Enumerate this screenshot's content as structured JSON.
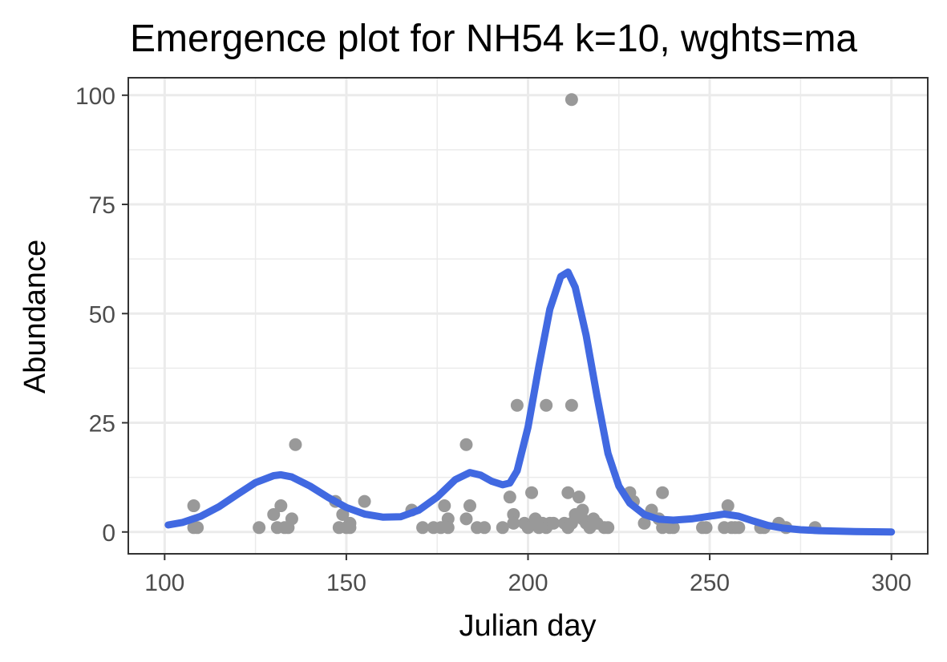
{
  "chart_data": {
    "type": "scatter",
    "title": "Emergence plot for NH54 k=10, wghts=ma",
    "xlabel": "Julian day",
    "ylabel": "Abundance",
    "xlim": [
      90,
      310
    ],
    "ylim": [
      -5,
      104
    ],
    "xticks": [
      100,
      150,
      200,
      250,
      300
    ],
    "yticks": [
      0,
      25,
      50,
      75,
      100
    ],
    "grid": true,
    "colors": {
      "points": "#999999",
      "curve": "#4169E1",
      "grid": "#ebebeb",
      "panel_border": "#333333"
    },
    "series": [
      {
        "type": "scatter",
        "points": [
          [
            108,
            6
          ],
          [
            108,
            1
          ],
          [
            109,
            1
          ],
          [
            126,
            1
          ],
          [
            130,
            4
          ],
          [
            131,
            1
          ],
          [
            132,
            6
          ],
          [
            133,
            1
          ],
          [
            134,
            1
          ],
          [
            135,
            3
          ],
          [
            136,
            20
          ],
          [
            147,
            7
          ],
          [
            148,
            1
          ],
          [
            149,
            4
          ],
          [
            150,
            1
          ],
          [
            151,
            2
          ],
          [
            151,
            1
          ],
          [
            155,
            7
          ],
          [
            168,
            5
          ],
          [
            171,
            1
          ],
          [
            174,
            1
          ],
          [
            176,
            1
          ],
          [
            177,
            6
          ],
          [
            178,
            3
          ],
          [
            178,
            1
          ],
          [
            183,
            20
          ],
          [
            183,
            3
          ],
          [
            184,
            6
          ],
          [
            186,
            1
          ],
          [
            188,
            1
          ],
          [
            193,
            1
          ],
          [
            195,
            8
          ],
          [
            196,
            4
          ],
          [
            196,
            2
          ],
          [
            197,
            29
          ],
          [
            199,
            2
          ],
          [
            200,
            1
          ],
          [
            201,
            9
          ],
          [
            202,
            3
          ],
          [
            203,
            1
          ],
          [
            204,
            2
          ],
          [
            205,
            29
          ],
          [
            205,
            1
          ],
          [
            206,
            2
          ],
          [
            207,
            2
          ],
          [
            210,
            2
          ],
          [
            211,
            9
          ],
          [
            211,
            1
          ],
          [
            212,
            99
          ],
          [
            212,
            29
          ],
          [
            212,
            2
          ],
          [
            213,
            4
          ],
          [
            214,
            8
          ],
          [
            215,
            5
          ],
          [
            215,
            3
          ],
          [
            216,
            2
          ],
          [
            217,
            1
          ],
          [
            218,
            3
          ],
          [
            219,
            2
          ],
          [
            221,
            1
          ],
          [
            222,
            1
          ],
          [
            228,
            9
          ],
          [
            229,
            7
          ],
          [
            232,
            2
          ],
          [
            234,
            5
          ],
          [
            236,
            3
          ],
          [
            237,
            9
          ],
          [
            237,
            1
          ],
          [
            239,
            1
          ],
          [
            240,
            1
          ],
          [
            248,
            1
          ],
          [
            249,
            1
          ],
          [
            254,
            1
          ],
          [
            255,
            6
          ],
          [
            256,
            1
          ],
          [
            257,
            1
          ],
          [
            258,
            1
          ],
          [
            264,
            1
          ],
          [
            265,
            1
          ],
          [
            269,
            2
          ],
          [
            271,
            1
          ],
          [
            279,
            1
          ]
        ]
      },
      {
        "type": "line",
        "points": [
          [
            101,
            1.6
          ],
          [
            105,
            2.2
          ],
          [
            110,
            3.6
          ],
          [
            115,
            5.8
          ],
          [
            120,
            8.6
          ],
          [
            125,
            11.3
          ],
          [
            130,
            12.9
          ],
          [
            132,
            13.1
          ],
          [
            135,
            12.6
          ],
          [
            140,
            10.5
          ],
          [
            145,
            7.9
          ],
          [
            150,
            5.6
          ],
          [
            155,
            4.1
          ],
          [
            160,
            3.4
          ],
          [
            165,
            3.5
          ],
          [
            170,
            5.0
          ],
          [
            175,
            8.0
          ],
          [
            180,
            12.0
          ],
          [
            184,
            13.6
          ],
          [
            187,
            13.0
          ],
          [
            190,
            11.6
          ],
          [
            193,
            10.8
          ],
          [
            195,
            11.2
          ],
          [
            197,
            14.0
          ],
          [
            200,
            24.0
          ],
          [
            203,
            38.0
          ],
          [
            206,
            51.0
          ],
          [
            209,
            58.5
          ],
          [
            211,
            59.5
          ],
          [
            213,
            56.0
          ],
          [
            216,
            45.0
          ],
          [
            219,
            31.0
          ],
          [
            222,
            18.0
          ],
          [
            225,
            10.5
          ],
          [
            228,
            6.6
          ],
          [
            232,
            4.0
          ],
          [
            236,
            2.9
          ],
          [
            240,
            2.7
          ],
          [
            245,
            3.0
          ],
          [
            250,
            3.6
          ],
          [
            254,
            4.1
          ],
          [
            258,
            3.6
          ],
          [
            262,
            2.5
          ],
          [
            266,
            1.5
          ],
          [
            270,
            0.9
          ],
          [
            275,
            0.5
          ],
          [
            280,
            0.3
          ],
          [
            290,
            0.1
          ],
          [
            300,
            0.0
          ]
        ]
      }
    ]
  }
}
